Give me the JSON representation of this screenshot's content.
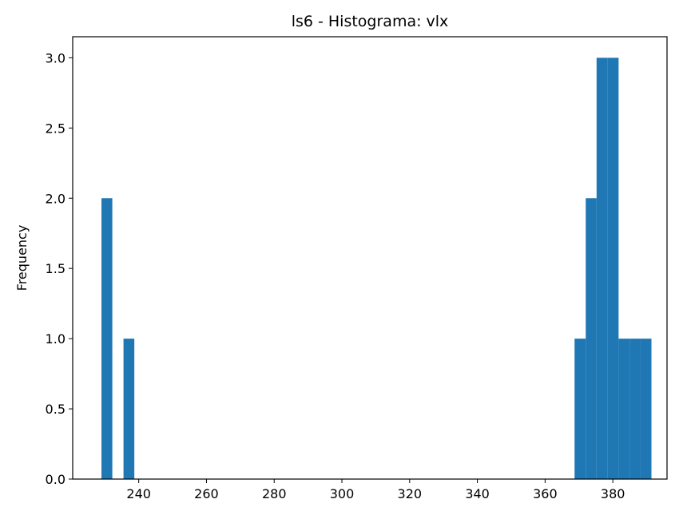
{
  "chart_data": {
    "type": "bar",
    "title": "ls6 - Histograma: vlx",
    "xlabel": "",
    "ylabel": "Frequency",
    "xlim": [
      220.5,
      396
    ],
    "ylim": [
      0,
      3.15
    ],
    "x_ticks": [
      240,
      260,
      280,
      300,
      320,
      340,
      360,
      380
    ],
    "y_ticks": [
      0.0,
      0.5,
      1.0,
      1.5,
      2.0,
      2.5,
      3.0
    ],
    "y_tick_labels": [
      "0.0",
      "0.5",
      "1.0",
      "1.5",
      "2.0",
      "2.5",
      "3.0"
    ],
    "grid": false,
    "legend": "none",
    "color": "#1f77b4",
    "bins": [
      {
        "x0": 229.0,
        "x1": 232.2,
        "count": 2
      },
      {
        "x0": 235.5,
        "x1": 238.7,
        "count": 1
      },
      {
        "x0": 368.7,
        "x1": 372.0,
        "count": 1
      },
      {
        "x0": 372.0,
        "x1": 375.2,
        "count": 2
      },
      {
        "x0": 375.2,
        "x1": 378.5,
        "count": 3
      },
      {
        "x0": 378.5,
        "x1": 381.7,
        "count": 3
      },
      {
        "x0": 381.7,
        "x1": 385.0,
        "count": 1
      },
      {
        "x0": 385.0,
        "x1": 388.2,
        "count": 1
      },
      {
        "x0": 388.2,
        "x1": 391.4,
        "count": 1
      }
    ]
  }
}
